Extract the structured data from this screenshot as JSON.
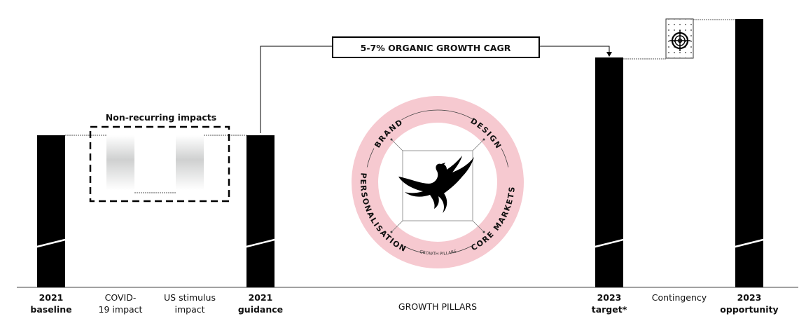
{
  "cagr_label": "5-7% ORGANIC GROWTH CAGR",
  "non_recurring_label": "Non-recurring impacts",
  "columns": [
    {
      "line1": "2021",
      "line2": "baseline",
      "bold": true
    },
    {
      "line1": "COVID-",
      "line2": "19 impact",
      "bold": false
    },
    {
      "line1": "US stimulus",
      "line2": "impact",
      "bold": false
    },
    {
      "line1": "2021",
      "line2": "guidance",
      "bold": true
    },
    {
      "line1": "GROWTH PILLARS",
      "line2": "",
      "bold": false
    },
    {
      "line1": "2023",
      "line2": "target*",
      "bold": true
    },
    {
      "line1": "Contingency",
      "line2": "",
      "bold": false
    },
    {
      "line1": "2023",
      "line2": "opportunity",
      "bold": true
    }
  ],
  "pillars": {
    "brand": "BRAND",
    "design": "DESIGN",
    "personalisation": "PERSONALISATION",
    "core_markets": "CORE MARKETS",
    "caption": "GROWTH PILLARS"
  },
  "icons": {
    "center": "phoenix-logo-icon",
    "contingency": "target-crosshair-icon"
  },
  "colors": {
    "bars": "#000000",
    "ring": "#f6c9d0",
    "impact_bars": "#d0d0d0"
  }
}
